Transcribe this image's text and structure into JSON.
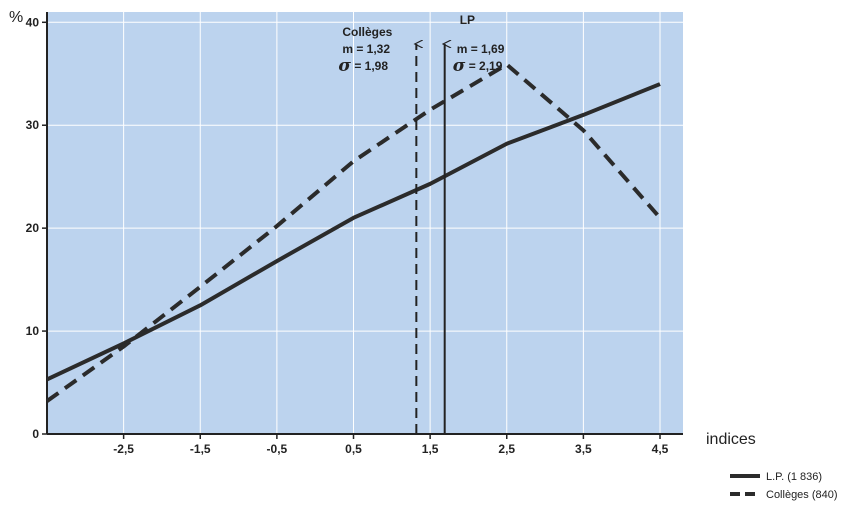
{
  "chart_data": {
    "type": "line",
    "ylabel": "%",
    "xlabel": "indices",
    "x": [
      -3.5,
      -2.5,
      -1.5,
      -0.5,
      0.5,
      1.5,
      2.5,
      3.5,
      4.5
    ],
    "x_ticks": [
      "-2,5",
      "-1,5",
      "-0,5",
      "0,5",
      "1,5",
      "2,5",
      "3,5",
      "4,5"
    ],
    "y_ticks": [
      "0",
      "10",
      "20",
      "30",
      "40"
    ],
    "xlim": [
      -3.5,
      4.8
    ],
    "ylim": [
      0,
      41
    ],
    "grid": true,
    "background": "#bcd3ee",
    "series": [
      {
        "name": "L.P. (1 836)",
        "style": "solid",
        "values": [
          5.3,
          8.8,
          12.5,
          16.8,
          21.0,
          24.3,
          28.2,
          31.0,
          34.0
        ]
      },
      {
        "name": "Collèges (840)",
        "style": "dashed",
        "values": [
          3.2,
          8.5,
          14.3,
          20.2,
          26.5,
          31.5,
          35.9,
          29.5,
          21.0
        ]
      }
    ],
    "markers": [
      {
        "x": 1.32,
        "style": "dashed",
        "title": "Collèges",
        "m": "m = 1,32",
        "sigma": "= 1,98"
      },
      {
        "x": 1.69,
        "style": "solid",
        "title": "LP",
        "m": "m = 1,69",
        "sigma": "= 2,19"
      }
    ],
    "sigma_symbol": "σ",
    "legend_position": "bottom-right"
  }
}
